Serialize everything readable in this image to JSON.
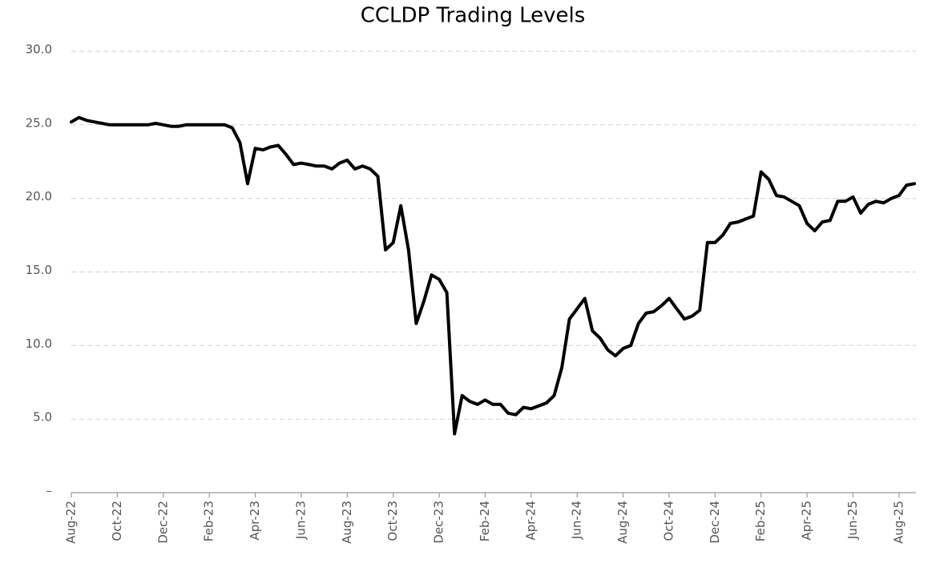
{
  "chart_data": {
    "type": "line",
    "title": "CCLDP Trading Levels",
    "categories": [
      "Aug-22",
      null,
      null,
      null,
      null,
      null,
      "Oct-22",
      null,
      null,
      null,
      null,
      null,
      "Dec-22",
      null,
      null,
      null,
      null,
      null,
      "Feb-23",
      null,
      null,
      null,
      null,
      null,
      "Apr-23",
      null,
      null,
      null,
      null,
      null,
      "Jun-23",
      null,
      null,
      null,
      null,
      null,
      "Aug-23",
      null,
      null,
      null,
      null,
      null,
      "Oct-23",
      null,
      null,
      null,
      null,
      null,
      "Dec-23",
      null,
      null,
      null,
      null,
      null,
      "Feb-24",
      null,
      null,
      null,
      null,
      null,
      "Apr-24",
      null,
      null,
      null,
      null,
      null,
      "Jun-24",
      null,
      null,
      null,
      null,
      null,
      "Aug-24",
      null,
      null,
      null,
      null,
      null,
      "Oct-24",
      null,
      null,
      null,
      null,
      null,
      "Dec-24",
      null,
      null,
      null,
      null,
      null,
      "Feb-25",
      null,
      null,
      null,
      null,
      null,
      "Apr-25",
      null,
      null,
      null,
      null,
      null,
      "Jun-25",
      null,
      null,
      null,
      null,
      null,
      "Aug-25",
      null,
      null
    ],
    "values": [
      25.2,
      25.5,
      25.3,
      25.2,
      25.1,
      25.0,
      25.0,
      25.0,
      25.0,
      25.0,
      25.0,
      25.1,
      25.0,
      24.9,
      24.9,
      25.0,
      25.0,
      25.0,
      25.0,
      25.0,
      25.0,
      24.8,
      23.8,
      21.0,
      23.4,
      23.3,
      23.5,
      23.6,
      23.0,
      22.3,
      22.4,
      22.3,
      22.2,
      22.2,
      22.0,
      22.4,
      22.6,
      22.0,
      22.2,
      22.0,
      21.5,
      16.5,
      17.0,
      19.5,
      16.5,
      11.5,
      13.0,
      14.8,
      14.5,
      13.6,
      4.0,
      6.6,
      6.2,
      6.0,
      6.3,
      6.0,
      6.0,
      5.4,
      5.3,
      5.8,
      5.7,
      5.9,
      6.1,
      6.6,
      8.5,
      11.8,
      12.5,
      13.2,
      11.0,
      10.5,
      9.7,
      9.3,
      9.8,
      10.0,
      11.5,
      12.2,
      12.3,
      12.7,
      13.2,
      12.5,
      11.8,
      12.0,
      12.4,
      17.0,
      17.0,
      17.5,
      18.3,
      18.4,
      18.6,
      18.8,
      21.8,
      21.3,
      20.2,
      20.1,
      19.8,
      19.5,
      18.3,
      17.8,
      18.4,
      18.5,
      19.8,
      19.8,
      20.1,
      19.0,
      19.6,
      19.8,
      19.7,
      20.0,
      20.2,
      20.9,
      21.0
    ],
    "color": "#000000",
    "ylim": [
      0,
      30
    ],
    "yticks": [
      {
        "value": 0,
        "label": "–"
      },
      {
        "value": 5,
        "label": "5.0"
      },
      {
        "value": 10,
        "label": "10.0"
      },
      {
        "value": 15,
        "label": "15.0"
      },
      {
        "value": 20,
        "label": "20.0"
      },
      {
        "value": 25,
        "label": "25.0"
      },
      {
        "value": 30,
        "label": "30.0"
      }
    ],
    "grid": true
  }
}
